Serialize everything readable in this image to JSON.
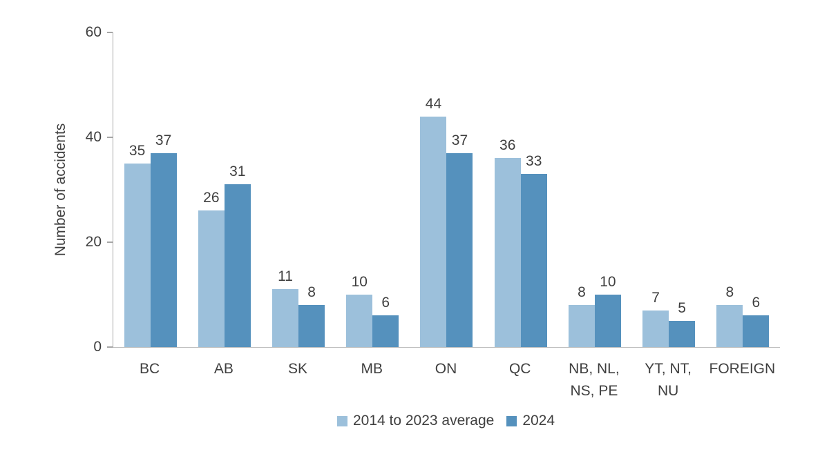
{
  "chart_data": {
    "type": "bar",
    "title": "",
    "xlabel": "",
    "ylabel": "Number of accidents",
    "ylim": [
      0,
      60
    ],
    "yticks": [
      0,
      20,
      40,
      60
    ],
    "grid": false,
    "legend_position": "bottom-center",
    "bar_value_labels": true,
    "categories": [
      "BC",
      "AB",
      "SK",
      "MB",
      "ON",
      "QC",
      "NB, NL,\nNS, PE",
      "YT, NT,\nNU",
      "FOREIGN"
    ],
    "series": [
      {
        "name": "2014 to 2023 average",
        "color": "#9CC0DB",
        "values": [
          35,
          26,
          11,
          10,
          44,
          36,
          8,
          7,
          8
        ]
      },
      {
        "name": "2024",
        "color": "#5591BD",
        "values": [
          37,
          31,
          8,
          6,
          37,
          33,
          10,
          5,
          6
        ]
      }
    ],
    "axis_color": "#A6A6A6",
    "baseline_color": "#BFBFBF",
    "text_color": "#3F3F3F",
    "background_color": "#FFFFFF"
  }
}
